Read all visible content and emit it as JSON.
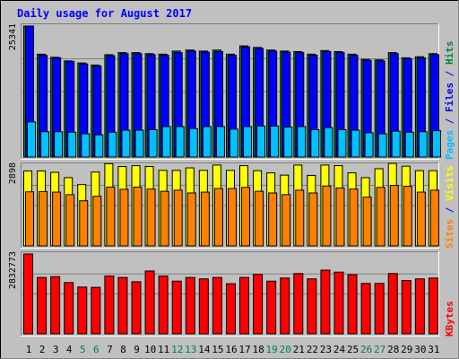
{
  "colors": {
    "background": "#c0c0c0",
    "title": "#0000ff",
    "hits": "#008040",
    "files": "#0000ff",
    "pages": "#00c0ff",
    "visits": "#ffff00",
    "sites": "#ff8000",
    "kbytes": "#ff0000",
    "day_weekday": "#000000",
    "day_weekend": "#008040"
  },
  "chart_data": {
    "type": "bar",
    "title": "Daily usage for August 2017",
    "x": [
      "1",
      "2",
      "3",
      "4",
      "5",
      "6",
      "7",
      "8",
      "9",
      "10",
      "11",
      "12",
      "13",
      "14",
      "15",
      "16",
      "17",
      "18",
      "19",
      "20",
      "21",
      "22",
      "23",
      "24",
      "25",
      "26",
      "27",
      "28",
      "29",
      "30",
      "31"
    ],
    "weekend_days": [
      "5",
      "6",
      "12",
      "13",
      "19",
      "20",
      "26",
      "27"
    ],
    "panels": [
      {
        "axis_max_label": "25341",
        "ymax": 25341,
        "legend": [
          {
            "text": "Pages",
            "color_key": "pages"
          },
          {
            "text": " / ",
            "color_key": "title"
          },
          {
            "text": "Files",
            "color_key": "files"
          },
          {
            "text": " / ",
            "color_key": "title"
          },
          {
            "text": "Hits",
            "color_key": "hits"
          }
        ],
        "series": [
          {
            "name": "Hits",
            "color_key": "hits",
            "values": [
              25341,
              19900,
              19300,
              18600,
              18200,
              17800,
              19800,
              20200,
              20200,
              20000,
              19900,
              20500,
              20700,
              20500,
              20700,
              19900,
              21500,
              21200,
              20700,
              20500,
              20400,
              19900,
              20600,
              20400,
              19900,
              18900,
              18800,
              20200,
              19200,
              19400,
              20000
            ]
          },
          {
            "name": "Files",
            "color_key": "files",
            "values": [
              25341,
              19700,
              19200,
              18500,
              18000,
              17600,
              19600,
              20000,
              20000,
              19800,
              19700,
              20200,
              20500,
              20300,
              20400,
              19700,
              21300,
              21000,
              20500,
              20300,
              20200,
              19700,
              20400,
              20200,
              19700,
              18700,
              18600,
              20000,
              19000,
              19200,
              19800
            ]
          },
          {
            "name": "Pages",
            "color_key": "pages",
            "values": [
              6800,
              4900,
              4900,
              4800,
              4500,
              4300,
              4800,
              5200,
              5200,
              5300,
              5900,
              5900,
              5500,
              5900,
              5900,
              5400,
              5900,
              6000,
              6000,
              5800,
              5900,
              5300,
              5700,
              5300,
              5200,
              4700,
              4500,
              5000,
              4800,
              4900,
              5100
            ]
          }
        ]
      },
      {
        "axis_max_label": "2898",
        "ymax": 2898,
        "legend": [
          {
            "text": "Sites",
            "color_key": "sites"
          },
          {
            "text": " / ",
            "color_key": "title"
          },
          {
            "text": "Visits",
            "color_key": "visits"
          }
        ],
        "series": [
          {
            "name": "Visits",
            "color_key": "visits",
            "values": [
              2690,
              2690,
              2640,
              2450,
              2200,
              2650,
              2950,
              2850,
              2880,
              2850,
              2710,
              2710,
              2800,
              2710,
              2900,
              2710,
              2880,
              2700,
              2620,
              2540,
              2900,
              2530,
              2900,
              2880,
              2620,
              2450,
              2770,
              2960,
              2860,
              2700,
              2700
            ]
          },
          {
            "name": "Sites",
            "color_key": "sites",
            "values": [
              1940,
              1950,
              1930,
              1840,
              1620,
              1780,
              2110,
              2030,
              2110,
              2040,
              1960,
              2000,
              1900,
              1930,
              2060,
              2060,
              2100,
              1960,
              1900,
              1840,
              2000,
              1900,
              2150,
              2080,
              2040,
              1750,
              2100,
              2170,
              2140,
              1930,
              2000
            ]
          }
        ]
      },
      {
        "axis_max_label": "2832773",
        "ymax": 2832773,
        "legend": [
          {
            "text": "KBytes",
            "color_key": "kbytes"
          }
        ],
        "series": [
          {
            "name": "KBytes",
            "color_key": "kbytes",
            "values": [
              2832773,
              2000000,
              2030000,
              1820000,
              1660000,
              1650000,
              2050000,
              2000000,
              1850000,
              2230000,
              2050000,
              1870000,
              2000000,
              1950000,
              2000000,
              1780000,
              2000000,
              2110000,
              1870000,
              1980000,
              2140000,
              1950000,
              2260000,
              2190000,
              2100000,
              1790000,
              1790000,
              2140000,
              1890000,
              1950000,
              1980000
            ]
          }
        ]
      }
    ]
  }
}
